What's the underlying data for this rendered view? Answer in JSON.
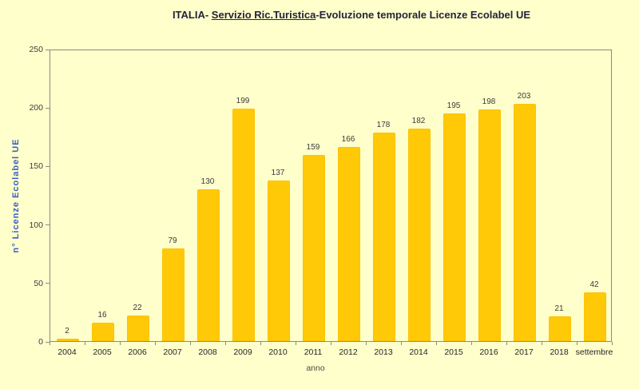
{
  "window": {
    "background_color": "#FFFFCC"
  },
  "title": {
    "prefix": "ITALIA- ",
    "underlined": "Servizio Ric.Turistica",
    "suffix": "-Evoluzione temporale Licenze Ecolabel UE",
    "color": "#23233B"
  },
  "chart_data": {
    "type": "bar",
    "title": "ITALIA- Servizio Ric.Turistica-Evoluzione temporale Licenze Ecolabel UE",
    "categories": [
      "2004",
      "2005",
      "2006",
      "2007",
      "2008",
      "2009",
      "2010",
      "2011",
      "2012",
      "2013",
      "2014",
      "2015",
      "2016",
      "2017",
      "2018",
      "settembre"
    ],
    "values": [
      2,
      16,
      22,
      79,
      130,
      199,
      137,
      159,
      166,
      178,
      182,
      195,
      198,
      203,
      21,
      42
    ],
    "xlabel": "anno",
    "ylabel": "n° Licenze Ecolabel UE",
    "ylim": [
      0,
      250
    ],
    "yticks": [
      0,
      50,
      100,
      150,
      200,
      250
    ],
    "grid": false,
    "legend": false,
    "data_labels": true,
    "bar_color": "#FFC907",
    "bar_border_color": "#EBAE00",
    "plot_border_color": "#8C8C78",
    "background_color": "#FFFFCC",
    "ylabel_color": "#3A5FC8",
    "tick_label_color": "#3d3d3d"
  }
}
